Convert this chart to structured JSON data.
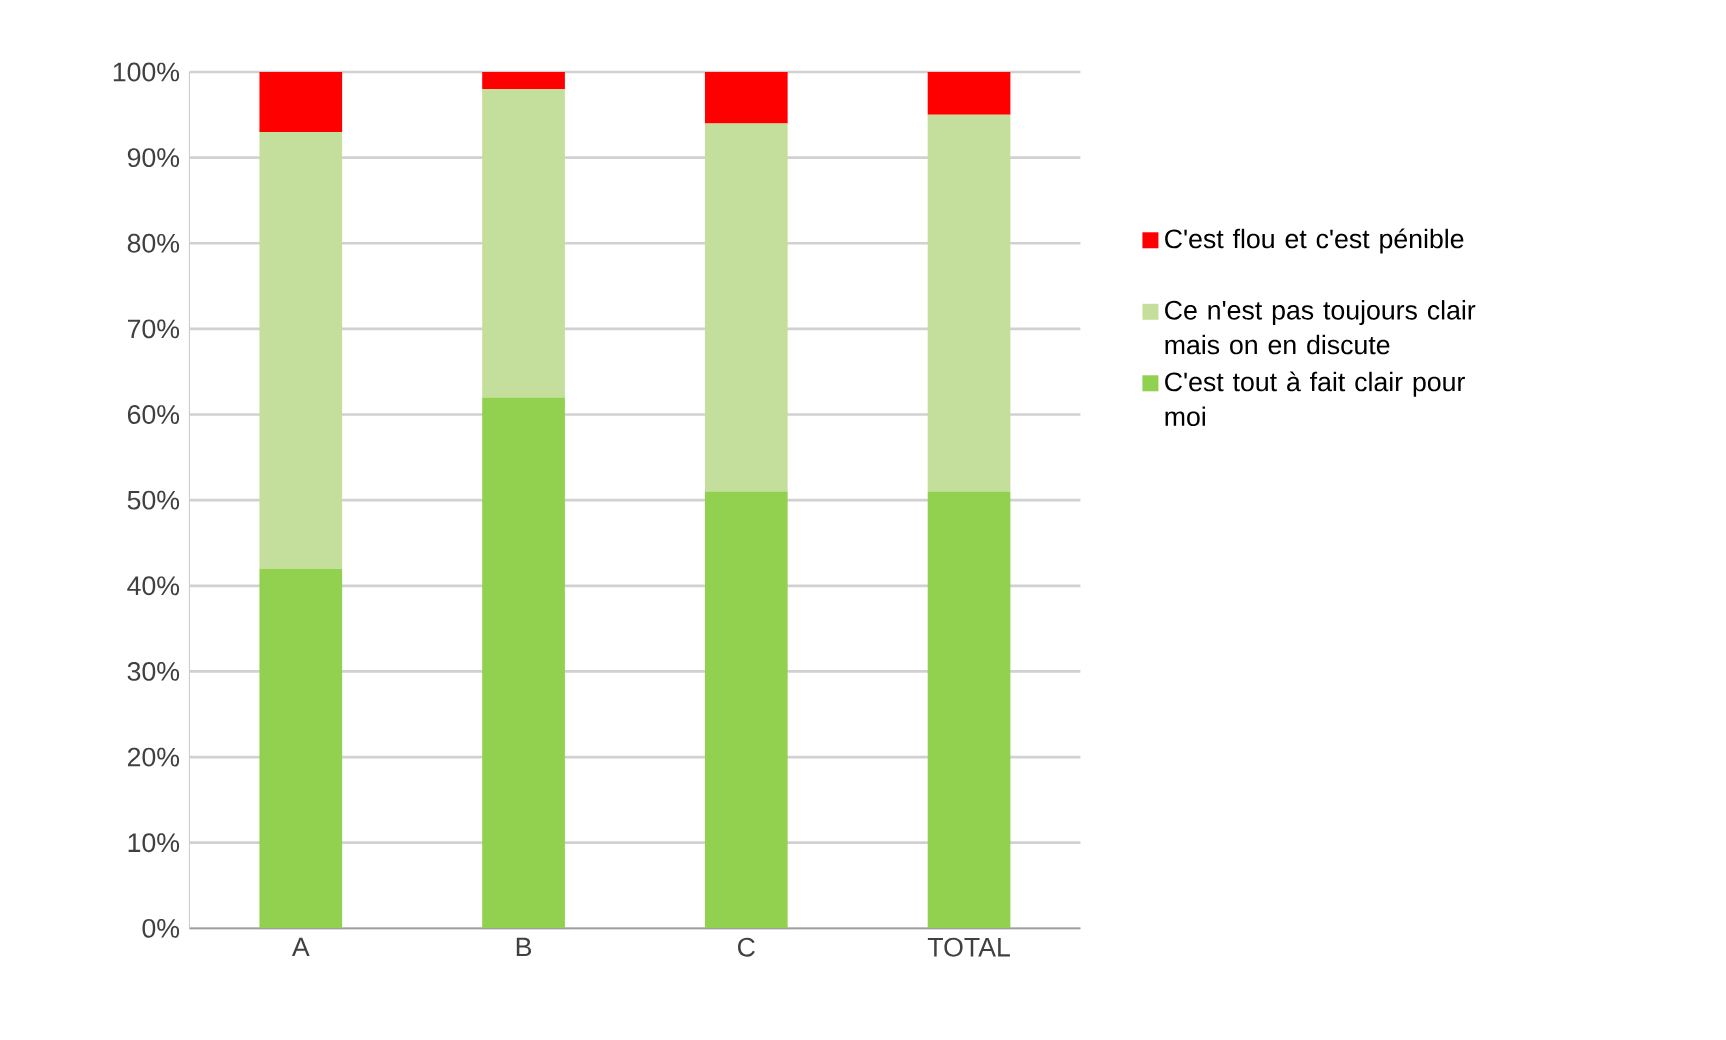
{
  "chart_data": {
    "type": "bar",
    "stacked": true,
    "categories": [
      "A",
      "B",
      "C",
      "TOTAL"
    ],
    "series": [
      {
        "name": "C'est tout à fait clair pour moi",
        "color": "#92d050",
        "values": [
          42,
          62,
          51,
          51
        ]
      },
      {
        "name": "Ce n'est pas toujours clair mais on en discute",
        "color": "#c4df9b",
        "values": [
          51,
          36,
          43,
          44
        ]
      },
      {
        "name": "C'est flou et c'est pénible",
        "color": "#ff0000",
        "values": [
          7,
          2,
          6,
          5
        ]
      }
    ],
    "ylim": [
      0,
      100
    ],
    "yticks": [
      {
        "value": 0,
        "label": "0%"
      },
      {
        "value": 10,
        "label": "10%"
      },
      {
        "value": 20,
        "label": "20%"
      },
      {
        "value": 30,
        "label": "30%"
      },
      {
        "value": 40,
        "label": "40%"
      },
      {
        "value": 50,
        "label": "50%"
      },
      {
        "value": 60,
        "label": "60%"
      },
      {
        "value": 70,
        "label": "70%"
      },
      {
        "value": 80,
        "label": "80%"
      },
      {
        "value": 90,
        "label": "90%"
      },
      {
        "value": 100,
        "label": "100%"
      }
    ],
    "grid": "y",
    "legend": "right"
  }
}
